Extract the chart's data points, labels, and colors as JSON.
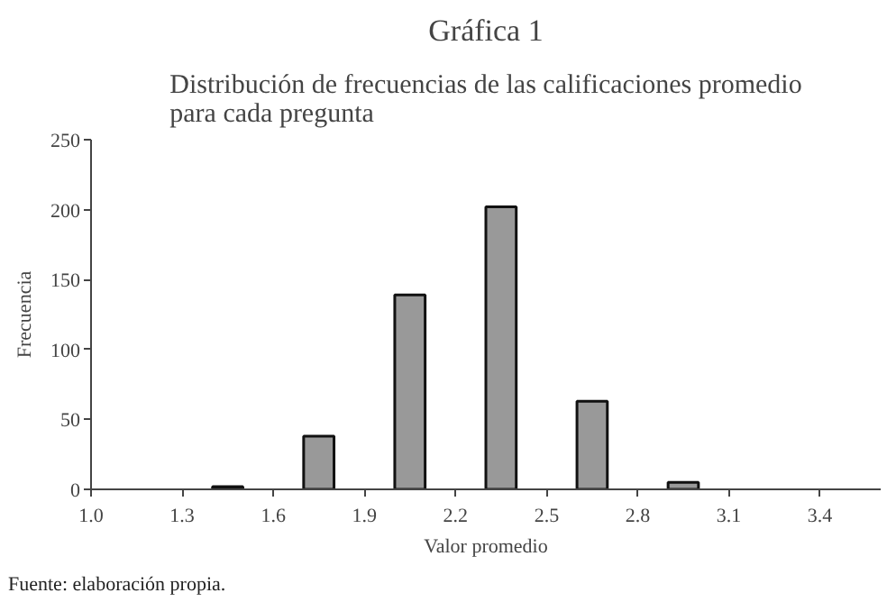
{
  "chart_data": {
    "type": "bar",
    "title": "Gráfica 1",
    "subtitle": "Distribución de frecuencias de las calificaciones promedio\npara cada pregunta",
    "xlabel": "Valor promedio",
    "ylabel": "Frecuencia",
    "x": [
      1.45,
      1.75,
      2.05,
      2.35,
      2.65,
      2.95
    ],
    "series": [
      {
        "color": "#999999",
        "values": [
          2,
          38,
          139,
          202,
          63,
          5
        ]
      }
    ],
    "xlim": [
      1.0,
      3.6
    ],
    "xticks": [
      {
        "value": 1.0,
        "label": "1.0"
      },
      1.3,
      1.6,
      1.9,
      2.2,
      2.5,
      2.8,
      3.1,
      3.4
    ],
    "ylim": [
      0,
      250
    ],
    "yticks": [
      0,
      50,
      100,
      150,
      200,
      250
    ],
    "grid": false,
    "annotations": [
      "Fuente: elaboración propia."
    ]
  }
}
